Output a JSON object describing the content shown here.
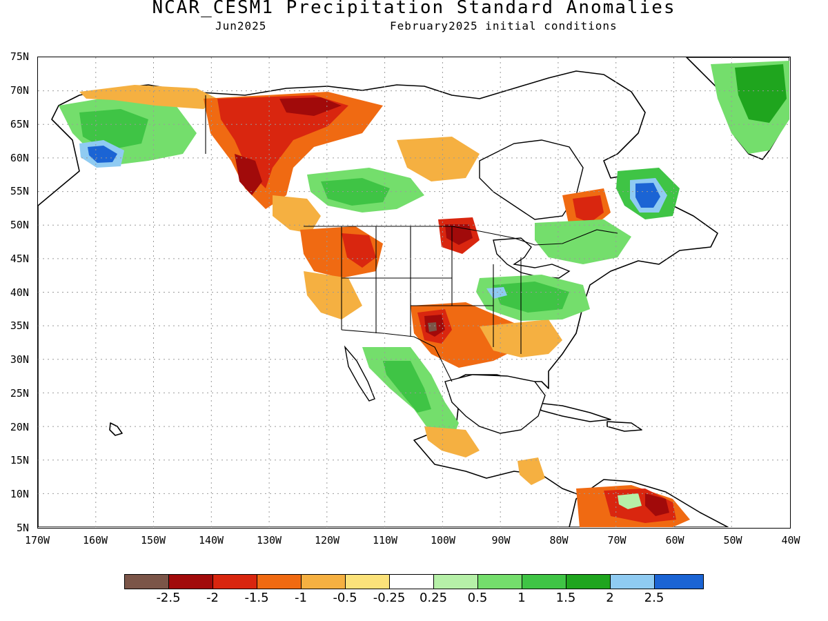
{
  "title": "NCAR_CESM1 Precipitation Standard Anomalies",
  "subtitle_left": "Jun2025",
  "subtitle_right": "February2025 initial conditions",
  "map": {
    "lon_range": [
      -170,
      -40
    ],
    "lat_range": [
      5,
      75
    ],
    "lat_labels": [
      "75N",
      "70N",
      "65N",
      "60N",
      "55N",
      "50N",
      "45N",
      "40N",
      "35N",
      "30N",
      "25N",
      "20N",
      "15N",
      "10N",
      "5N"
    ],
    "lon_labels": [
      "170W",
      "160W",
      "150W",
      "140W",
      "130W",
      "120W",
      "110W",
      "100W",
      "90W",
      "80W",
      "70W",
      "60W",
      "50W",
      "40W"
    ],
    "gridlines": "dotted",
    "land_base_color": "#ffffff",
    "coastline_color": "#000000"
  },
  "colorbar": {
    "colors": [
      "#7b5548",
      "#a10a0a",
      "#d9260f",
      "#f06a12",
      "#f5b041",
      "#fbe27a",
      "#ffffff",
      "#b6f0a8",
      "#74de6c",
      "#3fc445",
      "#1fa51e",
      "#8fcbf2",
      "#1b64d4"
    ],
    "labels": [
      "-2.5",
      "-2",
      "-1.5",
      "-1",
      "-0.5",
      "-0.25",
      "0.25",
      "0.5",
      "1",
      "1.5",
      "2",
      "2.5"
    ]
  },
  "anomaly_regions": [
    {
      "name": "alaska-west",
      "level": "0.5",
      "color": "#74de6c"
    },
    {
      "name": "alaska-sw",
      "level": "2.5",
      "color": "#1b64d4"
    },
    {
      "name": "yukon",
      "level": "-2",
      "color": "#a10a0a"
    },
    {
      "name": "bc-coast",
      "level": "-1.5",
      "color": "#d9260f"
    },
    {
      "name": "prairies",
      "level": "1",
      "color": "#3fc445"
    },
    {
      "name": "labrador",
      "level": "2.5",
      "color": "#1b64d4"
    },
    {
      "name": "greenland",
      "level": "1.5",
      "color": "#1fa51e"
    },
    {
      "name": "texas-oklahoma",
      "level": "-2.5",
      "color": "#7b5548"
    },
    {
      "name": "ohio-valley",
      "level": "1",
      "color": "#3fc445"
    },
    {
      "name": "mexico",
      "level": "0.5",
      "color": "#74de6c"
    },
    {
      "name": "venezuela",
      "level": "-1.5",
      "color": "#d9260f"
    }
  ]
}
